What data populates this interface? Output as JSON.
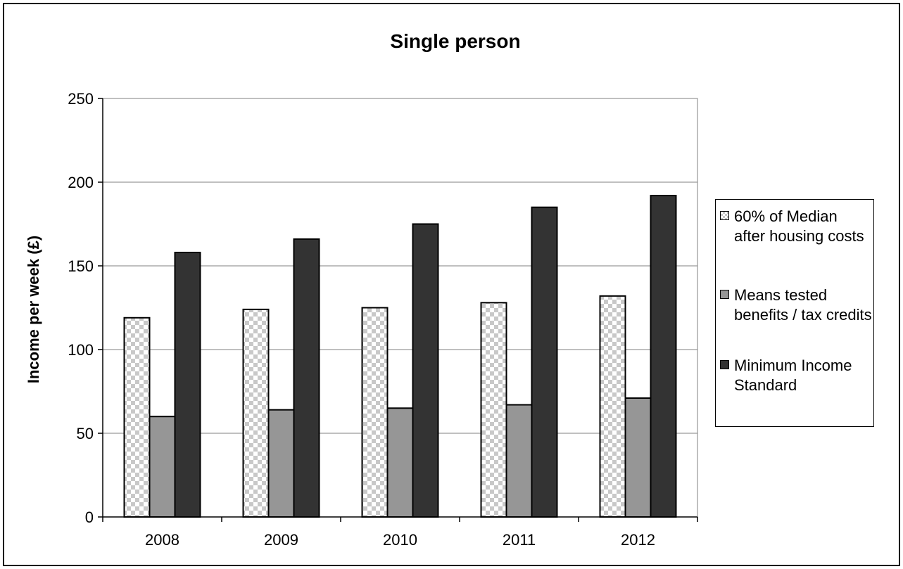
{
  "chart_data": {
    "type": "bar",
    "title": "Single person",
    "ylabel": "Income per week (£)",
    "xlabel": "",
    "categories": [
      "2008",
      "2009",
      "2010",
      "2011",
      "2012"
    ],
    "ylim": [
      0,
      250
    ],
    "yticks": [
      0,
      50,
      100,
      150,
      200,
      250
    ],
    "grid": true,
    "legend_position": "right",
    "series": [
      {
        "name": "60% of Median after housing costs",
        "values": [
          119,
          124,
          125,
          128,
          132
        ],
        "fill": "checkered",
        "color": "#ffffff"
      },
      {
        "name": "Means tested benefits / tax credits",
        "values": [
          60,
          64,
          65,
          67,
          71
        ],
        "fill": "solid",
        "color": "#969696"
      },
      {
        "name": "Minimum Income Standard",
        "values": [
          158,
          166,
          175,
          185,
          192
        ],
        "fill": "solid",
        "color": "#333333"
      }
    ]
  }
}
